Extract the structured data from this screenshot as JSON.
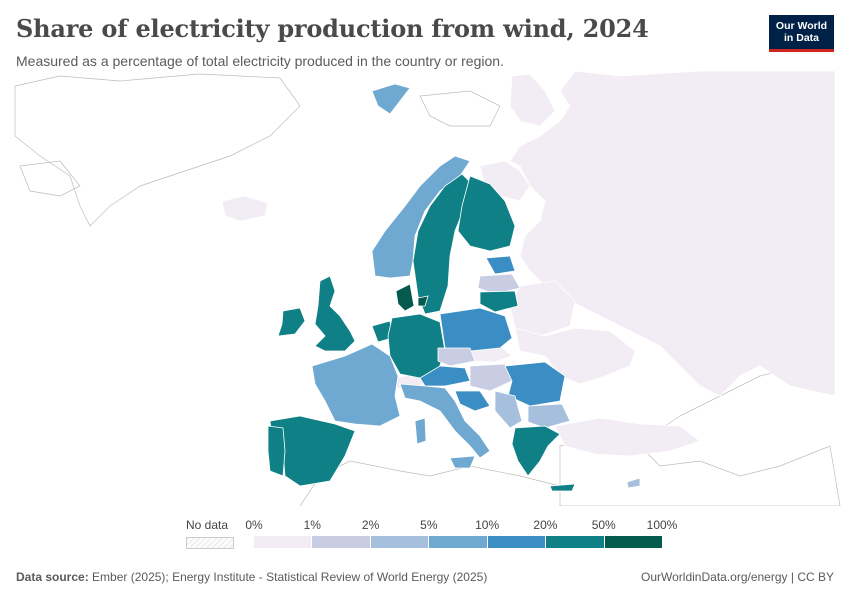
{
  "header": {
    "title": "Share of electricity production from wind, 2024",
    "subtitle": "Measured as a percentage of total electricity produced in the country or region.",
    "logo_line1": "Our World",
    "logo_line2": "in Data"
  },
  "legend": {
    "no_data_label": "No data",
    "bins": [
      {
        "label": "0%",
        "color": "#f2ecf5"
      },
      {
        "label": "1%",
        "color": "#c9cde3"
      },
      {
        "label": "2%",
        "color": "#a6bfdd"
      },
      {
        "label": "5%",
        "color": "#6fa8d1"
      },
      {
        "label": "10%",
        "color": "#3b8ec4"
      },
      {
        "label": "20%",
        "color": "#0e8086"
      },
      {
        "label": "50%",
        "color": "#045a4d"
      }
    ],
    "end_label": "100%"
  },
  "footer": {
    "source_label": "Data source:",
    "source_text": "Ember (2025); Energy Institute - Statistical Review of World Energy (2025)",
    "right_text": "OurWorldinData.org/energy | CC BY"
  },
  "map_data": {
    "regions": [
      {
        "name": "russia",
        "bin": 0
      },
      {
        "name": "belarus",
        "bin": 0
      },
      {
        "name": "ukraine",
        "bin": 0
      },
      {
        "name": "turkey",
        "bin": 0
      },
      {
        "name": "iceland",
        "bin": 0
      },
      {
        "name": "switzerland",
        "bin": 0
      },
      {
        "name": "norway",
        "bin": 3
      },
      {
        "name": "sweden",
        "bin": 5
      },
      {
        "name": "finland",
        "bin": 5
      },
      {
        "name": "denmark",
        "bin": 6
      },
      {
        "name": "uk",
        "bin": 5
      },
      {
        "name": "ireland",
        "bin": 5
      },
      {
        "name": "france",
        "bin": 3
      },
      {
        "name": "spain",
        "bin": 5
      },
      {
        "name": "portugal",
        "bin": 5
      },
      {
        "name": "germany",
        "bin": 5
      },
      {
        "name": "netherlands",
        "bin": 5
      },
      {
        "name": "poland",
        "bin": 4
      },
      {
        "name": "lithuania",
        "bin": 5
      },
      {
        "name": "latvia",
        "bin": 1
      },
      {
        "name": "estonia",
        "bin": 4
      },
      {
        "name": "italy",
        "bin": 3
      },
      {
        "name": "austria",
        "bin": 4
      },
      {
        "name": "czechia",
        "bin": 1
      },
      {
        "name": "hungary",
        "bin": 1
      },
      {
        "name": "romania",
        "bin": 4
      },
      {
        "name": "bulgaria",
        "bin": 2
      },
      {
        "name": "greece",
        "bin": 5
      },
      {
        "name": "croatia",
        "bin": 4
      },
      {
        "name": "serbia",
        "bin": 2
      },
      {
        "name": "slovakia",
        "bin": 0
      },
      {
        "name": "cyprus",
        "bin": 2
      }
    ]
  }
}
